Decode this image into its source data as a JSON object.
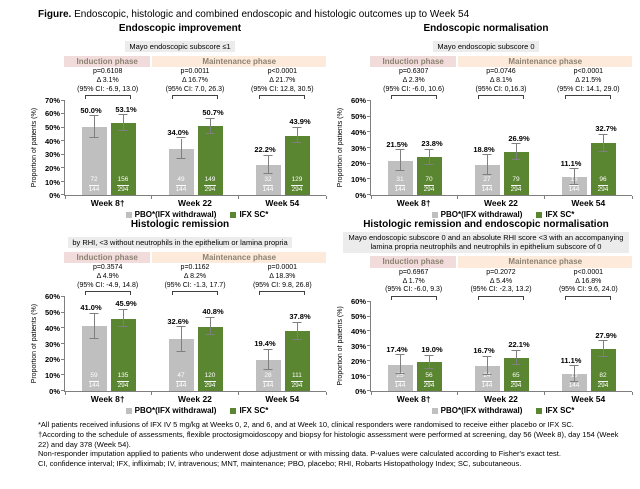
{
  "figure_title": {
    "label": "Figure.",
    "text": "Endoscopic, histologic and combined endoscopic and histologic outcomes up to Week 54"
  },
  "phases": {
    "induction": "Induction phase",
    "maintenance": "Maintenance phase"
  },
  "colors": {
    "pbo_bar": "#bfbfbf",
    "ifx_bar": "#5a8531",
    "induction_bg": "#f2dcdb",
    "maintenance_bg": "#fdeada",
    "subtitle_bg": "#ececec",
    "phase_text": "#8c8273",
    "error_bar": "#7f7f7f",
    "axis": "#7f7f7f"
  },
  "chart_data": [
    {
      "type": "bar",
      "title": "Endoscopic improvement",
      "subtitle": "Mayo endoscopic subscore ≤1",
      "ylabel": "Proportion of patients (%)",
      "ylim": [
        0,
        70
      ],
      "ytick_step": 10,
      "categories": [
        "Week 8†",
        "Week 22",
        "Week 54"
      ],
      "stats": [
        {
          "p": "p=0.6108",
          "delta": "Δ 3.1%",
          "ci": "(95% CI: -6.9, 13.0)"
        },
        {
          "p": "p=0.0011",
          "delta": "Δ 16.7%",
          "ci": "(95% CI: 7.0, 26.3)"
        },
        {
          "p": "p<0.0001",
          "delta": "Δ 21.7%",
          "ci": "(95% CI: 12.8, 30.5)"
        }
      ],
      "series": [
        {
          "name": "PBO*(IFX withdrawal)",
          "values": [
            50.0,
            34.0,
            22.2
          ],
          "labels": [
            "50.0%",
            "34.0%",
            "22.2%"
          ],
          "n": [
            [
              "72",
              "144"
            ],
            [
              "49",
              "144"
            ],
            [
              "32",
              "144"
            ]
          ],
          "err": [
            8.2,
            7.7,
            6.8
          ]
        },
        {
          "name": "IFX SC*",
          "values": [
            53.1,
            50.7,
            43.9
          ],
          "labels": [
            "53.1%",
            "50.7%",
            "43.9%"
          ],
          "n": [
            [
              "156",
              "294"
            ],
            [
              "149",
              "294"
            ],
            [
              "129",
              "294"
            ]
          ],
          "err": [
            5.7,
            5.7,
            5.7
          ]
        }
      ]
    },
    {
      "type": "bar",
      "title": "Endoscopic normalisation",
      "subtitle": "Mayo endoscopic subscore 0",
      "ylabel": "Proportion of patients (%)",
      "ylim": [
        0,
        60
      ],
      "ytick_step": 10,
      "categories": [
        "Week 8†",
        "Week 22",
        "Week 54"
      ],
      "stats": [
        {
          "p": "p=0.6307",
          "delta": "Δ 2.3%",
          "ci": "(95% CI: -6.0, 10.6)"
        },
        {
          "p": "p=0.0746",
          "delta": "Δ 8.1%",
          "ci": "(95% CI: 0,16.3)"
        },
        {
          "p": "p<0.0001",
          "delta": "Δ 21.5%",
          "ci": "(95% CI: 14.1, 29.0)"
        }
      ],
      "series": [
        {
          "name": "PBO*(IFX withdrawal)",
          "values": [
            21.5,
            18.8,
            11.1
          ],
          "labels": [
            "21.5%",
            "18.8%",
            "11.1%"
          ],
          "n": [
            [
              "31",
              "144"
            ],
            [
              "27",
              "144"
            ],
            [
              "16",
              "144"
            ]
          ],
          "err": [
            6.7,
            6.4,
            5.1
          ]
        },
        {
          "name": "IFX SC*",
          "values": [
            23.8,
            26.9,
            32.7
          ],
          "labels": [
            "23.8%",
            "26.9%",
            "32.7%"
          ],
          "n": [
            [
              "70",
              "294"
            ],
            [
              "79",
              "294"
            ],
            [
              "96",
              "294"
            ]
          ],
          "err": [
            4.9,
            5.1,
            5.4
          ]
        }
      ]
    },
    {
      "type": "bar",
      "title": "Histologic remission",
      "subtitle": "by RHI, <3 without neutrophils in the epithelium or lamina propria",
      "ylabel": "Proportion of patients (%)",
      "ylim": [
        0,
        60
      ],
      "ytick_step": 10,
      "categories": [
        "Week 8†",
        "Week 22",
        "Week 54"
      ],
      "stats": [
        {
          "p": "p=0.3574",
          "delta": "Δ 4.9%",
          "ci": "(95% CI: -4.9, 14.8)"
        },
        {
          "p": "p=0.1162",
          "delta": "Δ 8.2%",
          "ci": "(95% CI: -1.3, 17.7)"
        },
        {
          "p": "p=0.0001",
          "delta": "Δ 18.3%",
          "ci": "(95% CI: 9.8, 26.8)"
        }
      ],
      "series": [
        {
          "name": "PBO*(IFX withdrawal)",
          "values": [
            41.0,
            32.6,
            19.4
          ],
          "labels": [
            "41.0%",
            "32.6%",
            "19.4%"
          ],
          "n": [
            [
              "59",
              "144"
            ],
            [
              "47",
              "144"
            ],
            [
              "28",
              "144"
            ]
          ],
          "err": [
            8.0,
            7.7,
            6.5
          ]
        },
        {
          "name": "IFX SC*",
          "values": [
            45.9,
            40.8,
            37.8
          ],
          "labels": [
            "45.9%",
            "40.8%",
            "37.8%"
          ],
          "n": [
            [
              "135",
              "294"
            ],
            [
              "120",
              "294"
            ],
            [
              "111",
              "294"
            ]
          ],
          "err": [
            5.7,
            5.6,
            5.5
          ]
        }
      ]
    },
    {
      "type": "bar",
      "title": "Histologic remission and endoscopic normalisation",
      "subtitle": "Mayo endoscopic subscore 0 and an absolute RHI score <3 with an accompanying lamina propria neutrophils and neutrophils in epithelium subscore of 0",
      "ylabel": "Proportion of patients (%)",
      "ylim": [
        0,
        60
      ],
      "ytick_step": 10,
      "categories": [
        "Week 8†",
        "Week 22",
        "Week 54"
      ],
      "stats": [
        {
          "p": "p=0.6967",
          "delta": "Δ 1.7%",
          "ci": "(95% CI: -6.0, 9.3)"
        },
        {
          "p": "p=0.2072",
          "delta": "Δ 5.4%",
          "ci": "(95% CI: -2.3, 13.2)"
        },
        {
          "p": "p<0.0001",
          "delta": "Δ 16.8%",
          "ci": "(95% CI: 9.6, 24.0)"
        }
      ],
      "series": [
        {
          "name": "PBO*(IFX withdrawal)",
          "values": [
            17.4,
            16.7,
            11.1
          ],
          "labels": [
            "17.4%",
            "16.7%",
            "11.1%"
          ],
          "n": [
            [
              "25",
              "144"
            ],
            [
              "24",
              "144"
            ],
            [
              "16",
              "144"
            ]
          ],
          "err": [
            6.2,
            6.1,
            5.1
          ]
        },
        {
          "name": "IFX SC*",
          "values": [
            19.0,
            22.1,
            27.9
          ],
          "labels": [
            "19.0%",
            "22.1%",
            "27.9%"
          ],
          "n": [
            [
              "56",
              "294"
            ],
            [
              "65",
              "294"
            ],
            [
              "82",
              "294"
            ]
          ],
          "err": [
            4.5,
            4.7,
            5.1
          ]
        }
      ]
    }
  ],
  "footnotes": [
    "*All patients received infusions of IFX IV 5 mg/kg at Weeks 0, 2, and 6, and at Week 10, clinical responders were randomised to receive either placebo or IFX SC.",
    "†According to the schedule of assessments, flexible proctosigmoidoscopy and biopsy for histologic assessment were performed at screening, day 56 (Week 8), day 154 (Week 22) and day 378 (Week 54).",
    "Non-responder imputation applied to patients who underwent dose adjustment or with missing data. P-values were calculated according to Fisher's exact test.",
    "CI, confidence interval; IFX, infliximab; IV, intravenous; MNT, maintenance; PBO, placebo; RHI, Robarts Histopathology Index; SC, subcutaneous."
  ]
}
